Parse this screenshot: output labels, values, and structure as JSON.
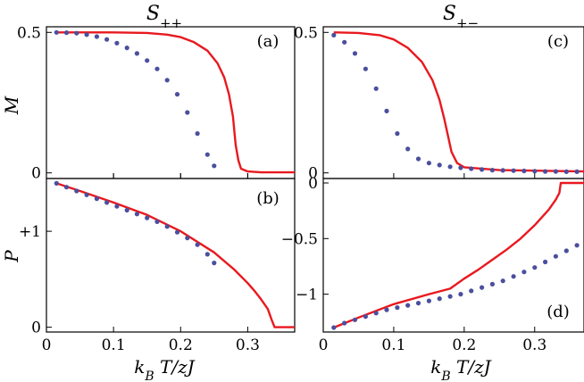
{
  "figure": {
    "col_titles": [
      "S++",
      "S+−"
    ],
    "x_label": "k_B T/zJ",
    "y_label_top": "M",
    "y_label_bottom": "P"
  },
  "colors": {
    "solid": "#e8191f",
    "dots": "#4b4f9e"
  },
  "chart_data": [
    {
      "id": "a",
      "type": "line",
      "panel_label": "(a)",
      "xlim": [
        0,
        0.37
      ],
      "ylim": [
        -0.02,
        0.52
      ],
      "yticks": [
        {
          "v": 0,
          "label": "0"
        },
        {
          "v": 0.5,
          "label": "0.5"
        }
      ],
      "xticks": [
        {
          "v": 0,
          "label": "0"
        },
        {
          "v": 0.1,
          "label": "0.1"
        },
        {
          "v": 0.2,
          "label": "0.2"
        },
        {
          "v": 0.3,
          "label": "0.3"
        }
      ],
      "series": [
        {
          "name": "solid",
          "style": "line",
          "x": [
            0.015,
            0.05,
            0.1,
            0.15,
            0.18,
            0.2,
            0.22,
            0.24,
            0.255,
            0.265,
            0.272,
            0.278,
            0.282,
            0.286,
            0.29,
            0.3,
            0.32,
            0.37
          ],
          "y": [
            0.5,
            0.5,
            0.5,
            0.498,
            0.492,
            0.483,
            0.465,
            0.435,
            0.39,
            0.34,
            0.28,
            0.2,
            0.1,
            0.045,
            0.015,
            0.005,
            0.002,
            0.002
          ]
        },
        {
          "name": "dots",
          "style": "dots",
          "x": [
            0.015,
            0.03,
            0.045,
            0.06,
            0.075,
            0.09,
            0.105,
            0.12,
            0.135,
            0.15,
            0.165,
            0.18,
            0.195,
            0.21,
            0.225,
            0.24,
            0.25
          ],
          "y": [
            0.5,
            0.499,
            0.497,
            0.492,
            0.485,
            0.475,
            0.462,
            0.445,
            0.425,
            0.4,
            0.37,
            0.33,
            0.28,
            0.215,
            0.14,
            0.065,
            0.025
          ]
        }
      ]
    },
    {
      "id": "b",
      "type": "line",
      "panel_label": "(b)",
      "xlim": [
        0,
        0.37
      ],
      "ylim": [
        -0.05,
        1.55
      ],
      "yticks": [
        {
          "v": 0,
          "label": "0"
        },
        {
          "v": 1,
          "label": "+1"
        }
      ],
      "xticks": [
        {
          "v": 0,
          "label": "0"
        },
        {
          "v": 0.1,
          "label": "0.1"
        },
        {
          "v": 0.2,
          "label": "0.2"
        },
        {
          "v": 0.3,
          "label": "0.3"
        }
      ],
      "series": [
        {
          "name": "solid",
          "style": "line",
          "x": [
            0.015,
            0.05,
            0.1,
            0.15,
            0.2,
            0.25,
            0.28,
            0.3,
            0.31,
            0.32,
            0.33,
            0.336,
            0.34,
            0.37
          ],
          "y": [
            1.5,
            1.42,
            1.3,
            1.17,
            1.0,
            0.78,
            0.6,
            0.46,
            0.38,
            0.29,
            0.19,
            0.07,
            0,
            0
          ]
        },
        {
          "name": "dots",
          "style": "dots",
          "x": [
            0.015,
            0.03,
            0.045,
            0.06,
            0.075,
            0.09,
            0.105,
            0.12,
            0.135,
            0.15,
            0.165,
            0.18,
            0.195,
            0.21,
            0.225,
            0.24,
            0.25
          ],
          "y": [
            1.5,
            1.46,
            1.42,
            1.38,
            1.34,
            1.3,
            1.26,
            1.22,
            1.18,
            1.14,
            1.1,
            1.05,
            0.99,
            0.93,
            0.86,
            0.76,
            0.67
          ]
        }
      ]
    },
    {
      "id": "c",
      "type": "line",
      "panel_label": "(c)",
      "xlim": [
        0,
        0.37
      ],
      "ylim": [
        -0.02,
        0.52
      ],
      "yticks": [
        {
          "v": 0,
          "label": "0"
        },
        {
          "v": 0.5,
          "label": "0.5"
        }
      ],
      "xticks": [],
      "series": [
        {
          "name": "solid",
          "style": "line",
          "x": [
            0.015,
            0.05,
            0.08,
            0.1,
            0.12,
            0.14,
            0.155,
            0.165,
            0.172,
            0.178,
            0.182,
            0.19,
            0.2,
            0.25,
            0.37
          ],
          "y": [
            0.5,
            0.498,
            0.49,
            0.475,
            0.445,
            0.395,
            0.33,
            0.26,
            0.19,
            0.12,
            0.075,
            0.035,
            0.02,
            0.01,
            0.005
          ]
        },
        {
          "name": "dots",
          "style": "dots",
          "x": [
            0.015,
            0.03,
            0.045,
            0.06,
            0.075,
            0.09,
            0.105,
            0.12,
            0.135,
            0.15,
            0.165,
            0.18,
            0.195,
            0.21,
            0.225,
            0.24,
            0.255,
            0.27,
            0.285,
            0.3,
            0.315,
            0.33,
            0.345,
            0.36
          ],
          "y": [
            0.49,
            0.465,
            0.425,
            0.37,
            0.3,
            0.22,
            0.14,
            0.085,
            0.05,
            0.035,
            0.028,
            0.022,
            0.018,
            0.015,
            0.012,
            0.01,
            0.009,
            0.008,
            0.007,
            0.006,
            0.005,
            0.005,
            0.004,
            0.004
          ]
        }
      ]
    },
    {
      "id": "d",
      "type": "line",
      "panel_label": "(d)",
      "xlim": [
        0,
        0.37
      ],
      "ylim": [
        -1.34,
        0.04
      ],
      "yticks": [
        {
          "v": 0,
          "label": "0"
        },
        {
          "v": -0.5,
          "label": "−0.5"
        },
        {
          "v": -1,
          "label": "−1"
        }
      ],
      "xticks": [
        {
          "v": 0,
          "label": "0"
        },
        {
          "v": 0.1,
          "label": "0.1"
        },
        {
          "v": 0.2,
          "label": "0.2"
        },
        {
          "v": 0.3,
          "label": "0.3"
        }
      ],
      "series": [
        {
          "name": "solid",
          "style": "line",
          "x": [
            0.015,
            0.05,
            0.1,
            0.15,
            0.18,
            0.2,
            0.22,
            0.24,
            0.26,
            0.28,
            0.3,
            0.32,
            0.33,
            0.335,
            0.337,
            0.34,
            0.37
          ],
          "y": [
            -1.3,
            -1.21,
            -1.09,
            -1.0,
            -0.95,
            -0.86,
            -0.78,
            -0.69,
            -0.6,
            -0.5,
            -0.38,
            -0.24,
            -0.15,
            -0.09,
            0,
            0,
            0
          ]
        },
        {
          "name": "dots",
          "style": "dots",
          "x": [
            0.015,
            0.03,
            0.045,
            0.06,
            0.075,
            0.09,
            0.105,
            0.12,
            0.135,
            0.15,
            0.165,
            0.18,
            0.195,
            0.21,
            0.225,
            0.24,
            0.255,
            0.27,
            0.285,
            0.3,
            0.315,
            0.33,
            0.345,
            0.36
          ],
          "y": [
            -1.3,
            -1.26,
            -1.23,
            -1.2,
            -1.17,
            -1.14,
            -1.12,
            -1.1,
            -1.08,
            -1.06,
            -1.04,
            -1.02,
            -1.0,
            -0.97,
            -0.94,
            -0.91,
            -0.88,
            -0.84,
            -0.8,
            -0.76,
            -0.71,
            -0.66,
            -0.61,
            -0.56
          ]
        }
      ]
    }
  ]
}
